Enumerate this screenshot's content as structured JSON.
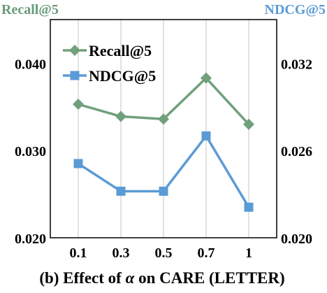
{
  "chart_data": {
    "type": "line",
    "title": "(b) Effect of α on CARE (LETTER)",
    "title_parts": [
      "(b) Effect of ",
      "α",
      " on CARE (LETTER)"
    ],
    "categories": [
      "0.1",
      "0.3",
      "0.5",
      "0.7",
      "1"
    ],
    "left_axis": {
      "label": "Recall@5",
      "ylim": [
        0.02,
        0.045
      ],
      "ticks": [
        "0.020",
        "0.030",
        "0.040"
      ],
      "tick_values": [
        0.02,
        0.03,
        0.04
      ],
      "color": "#6a9b7a"
    },
    "right_axis": {
      "label": "NDCG@5",
      "ylim": [
        0.02,
        0.035
      ],
      "ticks": [
        "0.020",
        "0.026",
        "0.032"
      ],
      "tick_values": [
        0.02,
        0.026,
        0.032
      ],
      "color": "#5b9bd5"
    },
    "series": [
      {
        "name": "Recall@5",
        "axis": "left",
        "values": [
          0.0353,
          0.0339,
          0.0336,
          0.0383,
          0.033
        ],
        "color": "#70a07c",
        "marker": "diamond"
      },
      {
        "name": "NDCG@5",
        "axis": "right",
        "values": [
          0.0251,
          0.0232,
          0.0232,
          0.027,
          0.0221
        ],
        "color": "#5b9bd5",
        "marker": "square"
      }
    ],
    "grid": true,
    "legend_position": "top-left"
  }
}
